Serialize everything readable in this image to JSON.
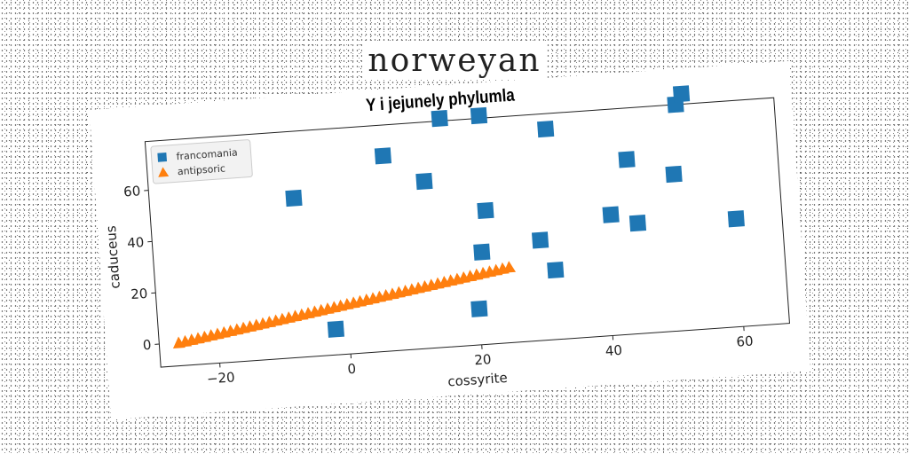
{
  "heading": "norweyan",
  "chart_data": {
    "type": "scatter",
    "title": "Y i jejunely phylumla",
    "xlabel": "cossyrite",
    "ylabel": "caduceus",
    "xlim": [
      -29,
      67
    ],
    "ylim": [
      -9,
      79
    ],
    "xticks": [
      -20,
      0,
      20,
      40,
      60
    ],
    "yticks": [
      0,
      20,
      40,
      60
    ],
    "grid": false,
    "legend_position": "top-left",
    "series": [
      {
        "name": "francomania",
        "marker": "square",
        "color": "#1f77b4",
        "points": [
          [
            -7,
            53
          ],
          [
            -2,
            1
          ],
          [
            7,
            67
          ],
          [
            13,
            56
          ],
          [
            16,
            80
          ],
          [
            20,
            5
          ],
          [
            21,
            27
          ],
          [
            22,
            43
          ],
          [
            22,
            80
          ],
          [
            30,
            30
          ],
          [
            32,
            18
          ],
          [
            32,
            73
          ],
          [
            41,
            38
          ],
          [
            44,
            59
          ],
          [
            45,
            34
          ],
          [
            51,
            52
          ],
          [
            52,
            79
          ],
          [
            53,
            83
          ],
          [
            60,
            33
          ]
        ]
      },
      {
        "name": "antipsoric",
        "marker": "triangle",
        "color": "#ff7f0e",
        "points": [
          [
            -26,
            0.0
          ],
          [
            -25,
            0.4
          ],
          [
            -24,
            0.8
          ],
          [
            -23,
            1.2
          ],
          [
            -22,
            1.6
          ],
          [
            -21,
            2.0
          ],
          [
            -20,
            2.4
          ],
          [
            -19,
            2.8
          ],
          [
            -18,
            3.2
          ],
          [
            -17,
            3.6
          ],
          [
            -16,
            4.0
          ],
          [
            -15,
            4.4
          ],
          [
            -14,
            4.8
          ],
          [
            -13,
            5.2
          ],
          [
            -12,
            5.6
          ],
          [
            -11,
            6.0
          ],
          [
            -10,
            6.4
          ],
          [
            -9,
            6.8
          ],
          [
            -8,
            7.2
          ],
          [
            -7,
            7.6
          ],
          [
            -6,
            8.0
          ],
          [
            -5,
            8.4
          ],
          [
            -4,
            8.8
          ],
          [
            -3,
            9.2
          ],
          [
            -2,
            9.6
          ],
          [
            -1,
            10.0
          ],
          [
            0,
            10.4
          ],
          [
            1,
            10.8
          ],
          [
            2,
            11.2
          ],
          [
            3,
            11.6
          ],
          [
            4,
            12.0
          ],
          [
            5,
            12.4
          ],
          [
            6,
            12.8
          ],
          [
            7,
            13.2
          ],
          [
            8,
            13.6
          ],
          [
            9,
            14.0
          ],
          [
            10,
            14.4
          ],
          [
            11,
            14.8
          ],
          [
            12,
            15.2
          ],
          [
            13,
            15.6
          ],
          [
            14,
            16.0
          ],
          [
            15,
            16.4
          ],
          [
            16,
            16.8
          ],
          [
            17,
            17.2
          ],
          [
            18,
            17.6
          ],
          [
            19,
            18.0
          ],
          [
            20,
            18.4
          ],
          [
            21,
            18.8
          ],
          [
            22,
            19.2
          ],
          [
            23,
            19.6
          ],
          [
            24,
            20.0
          ],
          [
            25,
            20.4
          ]
        ]
      }
    ]
  }
}
